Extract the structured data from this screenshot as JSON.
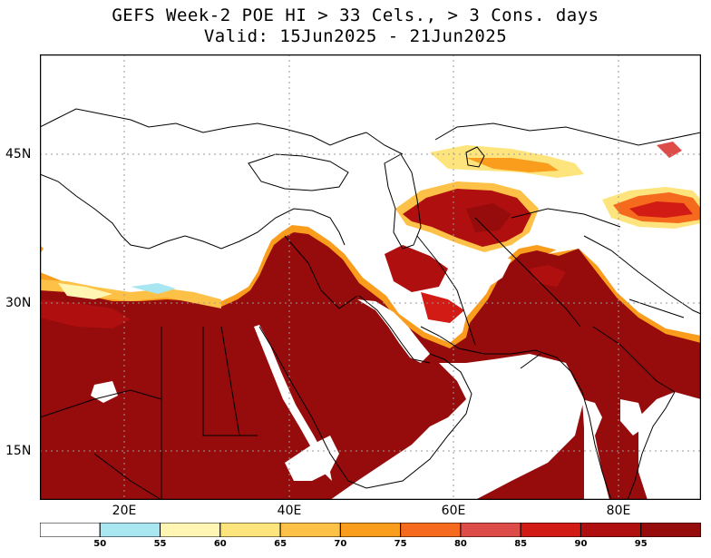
{
  "title": {
    "line1": "GEFS Week-2 POE HI > 33 Cels., > 3 Cons. days",
    "line2": "Valid: 15Jun2025 - 21Jun2025"
  },
  "map": {
    "lat_labels": [
      "45N",
      "30N",
      "15N"
    ],
    "lon_labels": [
      "20E",
      "40E",
      "60E",
      "80E"
    ],
    "gridlines": "dotted",
    "colors": {
      "land_outline": "#000000",
      "gridline": "#9a9a9a"
    }
  },
  "legend": {
    "labels": [
      "50",
      "55",
      "60",
      "65",
      "70",
      "75",
      "80",
      "85",
      "90",
      "95"
    ],
    "bins": [
      {
        "range": "<50",
        "color": "#ffffff"
      },
      {
        "range": "50-55",
        "color": "#a8e6f2"
      },
      {
        "range": "55-60",
        "color": "#fff6b4"
      },
      {
        "range": "60-65",
        "color": "#fde47c"
      },
      {
        "range": "65-70",
        "color": "#fcc146"
      },
      {
        "range": "70-75",
        "color": "#fa9c1c"
      },
      {
        "range": "75-80",
        "color": "#f56a1c"
      },
      {
        "range": "80-85",
        "color": "#de4c4a"
      },
      {
        "range": "85-90",
        "color": "#d11b14"
      },
      {
        "range": "90-95",
        "color": "#b00f0f"
      },
      {
        "range": ">95",
        "color": "#960b0b"
      }
    ]
  }
}
